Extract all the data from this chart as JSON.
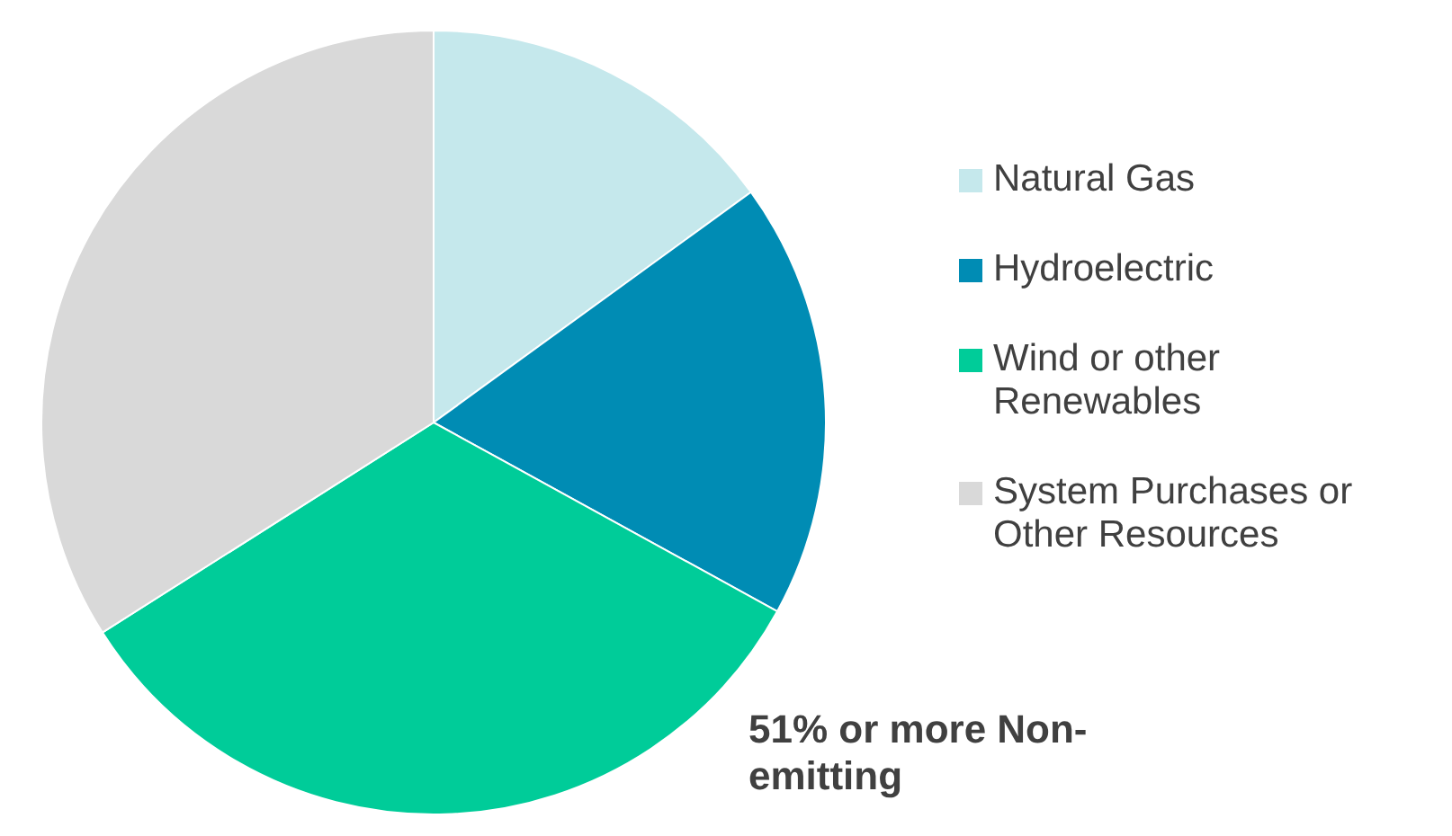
{
  "chart_data": {
    "type": "pie",
    "categories": [
      "Natural Gas",
      "Hydroelectric",
      "Wind or other Renewables",
      "System Purchases or Other Resources"
    ],
    "values": [
      15,
      18,
      33,
      34
    ],
    "colors": [
      "#c5e8ec",
      "#008cb4",
      "#00cc99",
      "#d9d9d9"
    ],
    "legend": "right",
    "annotations": [
      "51% or more Non-emitting"
    ]
  }
}
